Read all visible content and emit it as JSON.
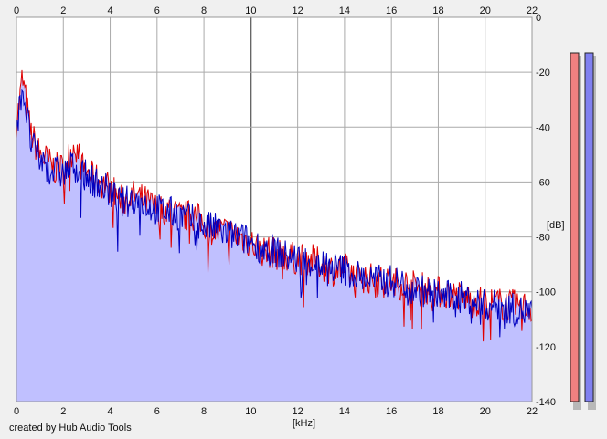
{
  "chart_data": {
    "type": "area",
    "title": "",
    "xlabel": "[kHz]",
    "ylabel": "[dB]",
    "xlim": [
      0,
      22
    ],
    "ylim": [
      -140,
      0
    ],
    "x_ticks": [
      0,
      2,
      4,
      6,
      8,
      10,
      12,
      14,
      16,
      18,
      20,
      22
    ],
    "y_ticks": [
      0,
      -20,
      -40,
      -60,
      -80,
      -100,
      -120,
      -140
    ],
    "grid": true,
    "fill_color": "#c0c0ff",
    "series": [
      {
        "color": "#e00000",
        "x": [
          0,
          0.1,
          0.25,
          0.4,
          0.6,
          0.8,
          1.0,
          1.3,
          1.6,
          2.0,
          2.3,
          2.5,
          2.8,
          3.2,
          3.6,
          4.0,
          4.5,
          5.0,
          5.5,
          6.0,
          6.5,
          7.0,
          7.5,
          8.0,
          8.5,
          9.0,
          9.5,
          10.0,
          10.5,
          11.0,
          11.5,
          12.0,
          12.5,
          13.0,
          13.5,
          14.0,
          14.5,
          15.0,
          15.5,
          16.0,
          16.5,
          17.0,
          17.5,
          18.0,
          18.5,
          19.0,
          19.5,
          20.0,
          20.5,
          21.0,
          21.5,
          22.0
        ],
        "values": [
          -38,
          -33,
          -22,
          -30,
          -42,
          -46,
          -50,
          -52,
          -55,
          -55,
          -50,
          -46,
          -55,
          -58,
          -60,
          -62,
          -67,
          -65,
          -67,
          -70,
          -70,
          -73,
          -72,
          -75,
          -78,
          -78,
          -80,
          -82,
          -85,
          -86,
          -87,
          -88,
          -88,
          -90,
          -92,
          -92,
          -94,
          -95,
          -96,
          -97,
          -97,
          -98,
          -99,
          -100,
          -101,
          -102,
          -103,
          -104,
          -104,
          -105,
          -105,
          -106
        ]
      },
      {
        "color": "#0000c0",
        "x": [
          0,
          0.1,
          0.25,
          0.4,
          0.6,
          0.8,
          1.0,
          1.3,
          1.6,
          2.0,
          2.3,
          2.5,
          2.8,
          3.2,
          3.6,
          4.0,
          4.5,
          5.0,
          5.5,
          6.0,
          6.5,
          7.0,
          7.5,
          8.0,
          8.5,
          9.0,
          9.5,
          10.0,
          10.5,
          11.0,
          11.5,
          12.0,
          12.5,
          13.0,
          13.5,
          14.0,
          14.5,
          15.0,
          15.5,
          16.0,
          16.5,
          17.0,
          17.5,
          18.0,
          18.5,
          19.0,
          19.5,
          20.0,
          20.5,
          21.0,
          21.5,
          22.0
        ],
        "values": [
          -40,
          -35,
          -25,
          -33,
          -45,
          -49,
          -52,
          -54,
          -56,
          -57,
          -55,
          -53,
          -57,
          -59,
          -61,
          -64,
          -68,
          -66,
          -68,
          -70,
          -71,
          -72,
          -74,
          -76,
          -77,
          -79,
          -80,
          -82,
          -84,
          -85,
          -87,
          -88,
          -89,
          -90,
          -91,
          -92,
          -94,
          -95,
          -96,
          -96,
          -97,
          -99,
          -100,
          -101,
          -102,
          -102,
          -103,
          -105,
          -105,
          -106,
          -107,
          -108
        ]
      }
    ]
  },
  "meters": {
    "left_color": "#f08080",
    "right_color": "#8080f0"
  },
  "footer": {
    "credit": "created by Hub Audio Tools"
  }
}
